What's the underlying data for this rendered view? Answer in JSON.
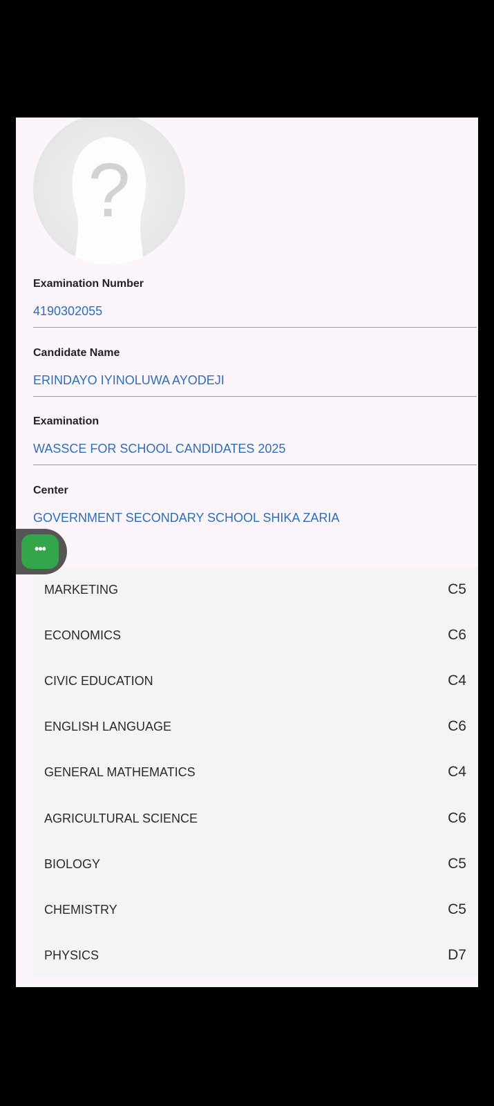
{
  "profile": {
    "avatar_icon": "unknown-person-icon"
  },
  "fields": [
    {
      "label": "Examination Number",
      "value": "4190302055"
    },
    {
      "label": "Candidate Name",
      "value": "ERINDAYO IYINOLUWA AYODEJI"
    },
    {
      "label": "Examination",
      "value": "WASSCE FOR SCHOOL CANDIDATES 2025"
    },
    {
      "label": "Center",
      "value": "GOVERNMENT SECONDARY SCHOOL SHIKA ZARIA"
    }
  ],
  "fab": {
    "icon": "more-dots-icon",
    "label": "•••",
    "color": "#33a64b"
  },
  "results": [
    {
      "subject": "MARKETING",
      "grade": "C5"
    },
    {
      "subject": "ECONOMICS",
      "grade": "C6"
    },
    {
      "subject": "CIVIC EDUCATION",
      "grade": "C4"
    },
    {
      "subject": "ENGLISH LANGUAGE",
      "grade": "C6"
    },
    {
      "subject": "GENERAL MATHEMATICS",
      "grade": "C4"
    },
    {
      "subject": "AGRICULTURAL SCIENCE",
      "grade": "C6"
    },
    {
      "subject": "BIOLOGY",
      "grade": "C5"
    },
    {
      "subject": "CHEMISTRY",
      "grade": "C5"
    },
    {
      "subject": "PHYSICS",
      "grade": "D7"
    }
  ]
}
